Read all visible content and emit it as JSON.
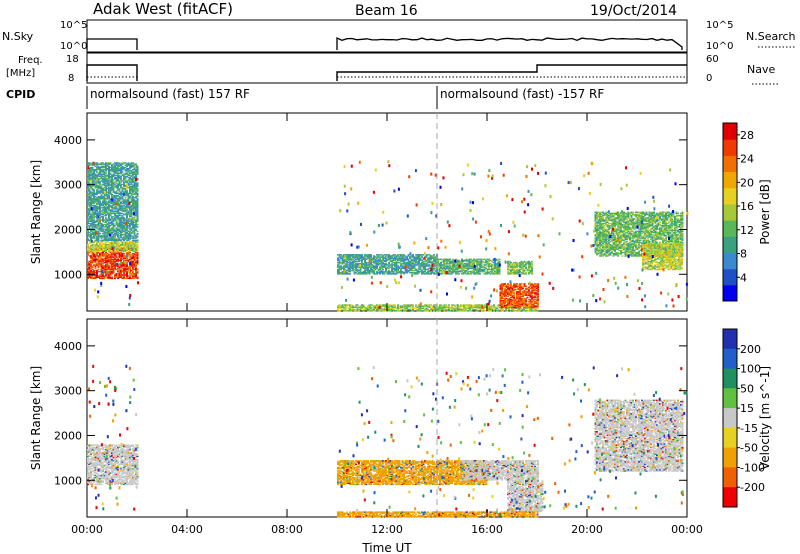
{
  "header": {
    "station": "Adak West (fitACF)",
    "beam": "Beam 16",
    "date": "19/Oct/2014"
  },
  "strip_labels": {
    "nsky": "N.Sky",
    "nsearch": "N.Search",
    "freq_line1": "Freq.",
    "freq_line2": "[MHz]",
    "nave": "Nave",
    "cpid": "CPID",
    "nsky_top": "10^5",
    "nsky_bottom": "10^0",
    "nsearch_top": "10^5",
    "nsearch_bottom": "10^0",
    "freq_top": "18",
    "freq_bottom": "8",
    "nave_top": "60",
    "nave_bottom": "0"
  },
  "cpid_segments": [
    {
      "start_h": 0,
      "end_h": 14,
      "label": "normalsound (fast) 157 RF"
    },
    {
      "start_h": 14,
      "end_h": 24,
      "label": "normalsound (fast) -157 RF"
    }
  ],
  "chart_data": [
    {
      "type": "heatmap",
      "name": "power",
      "xlabel": "Time UT",
      "ylabel": "Slant Range [km]",
      "xlim": [
        0,
        24
      ],
      "ylim": [
        180,
        4600
      ],
      "x_ticks": [
        "00:00",
        "04:00",
        "08:00",
        "12:00",
        "16:00",
        "20:00",
        "00:00"
      ],
      "y_ticks": [
        1000,
        2000,
        3000,
        4000
      ],
      "colorbar": {
        "label": "Power [dB]",
        "ticks": [
          4,
          8,
          12,
          16,
          20,
          24,
          28
        ],
        "range": [
          0,
          30
        ],
        "colors": [
          "#0000f0",
          "#1e4fc8",
          "#3a8ad0",
          "#3aa080",
          "#58b858",
          "#a8c838",
          "#e8d020",
          "#f0a800",
          "#f07000",
          "#f03a00",
          "#e00000"
        ]
      },
      "regions": [
        {
          "t": [
            0.0,
            2.0
          ],
          "r": [
            900,
            1600
          ],
          "level": 27
        },
        {
          "t": [
            0.0,
            2.0
          ],
          "r": [
            1500,
            1750
          ],
          "level": 16
        },
        {
          "t": [
            0.0,
            2.0
          ],
          "r": [
            1750,
            3500
          ],
          "level": 9
        },
        {
          "t": [
            10.0,
            18.0
          ],
          "r": [
            180,
            320
          ],
          "level": 14
        },
        {
          "t": [
            10.0,
            14.0
          ],
          "r": [
            1000,
            1450
          ],
          "level": 9
        },
        {
          "t": [
            14.0,
            16.5
          ],
          "r": [
            1000,
            1350
          ],
          "level": 11
        },
        {
          "t": [
            16.5,
            18.0
          ],
          "r": [
            250,
            800
          ],
          "level": 26
        },
        {
          "t": [
            16.8,
            17.8
          ],
          "r": [
            1000,
            1300
          ],
          "level": 13
        },
        {
          "t": [
            20.3,
            23.8
          ],
          "r": [
            1400,
            2400
          ],
          "level": 12
        },
        {
          "t": [
            22.2,
            23.8
          ],
          "r": [
            1100,
            1700
          ],
          "level": 16
        }
      ],
      "scatter_density": {
        "t": [
          10.0,
          24.0
        ],
        "r": [
          200,
          3600
        ]
      }
    },
    {
      "type": "heatmap",
      "name": "velocity",
      "xlabel": "Time UT",
      "ylabel": "Slant Range [km]",
      "xlim": [
        0,
        24
      ],
      "ylim": [
        180,
        4600
      ],
      "x_ticks": [
        "00:00",
        "04:00",
        "08:00",
        "12:00",
        "16:00",
        "20:00",
        "00:00"
      ],
      "y_ticks": [
        1000,
        2000,
        3000,
        4000
      ],
      "colorbar": {
        "label": "Velocity [m s^-1]",
        "ticks": [
          200,
          100,
          50,
          15,
          -15,
          -50,
          -100,
          -200
        ],
        "colors": [
          "#2030b0",
          "#2060c8",
          "#209060",
          "#60c040",
          "#c8c8c8",
          "#e8d020",
          "#f0a000",
          "#f06000",
          "#f00000"
        ]
      },
      "regions": [
        {
          "t": [
            0.0,
            2.0
          ],
          "r": [
            900,
            1800
          ],
          "band": 4
        },
        {
          "t": [
            10.0,
            16.0
          ],
          "r": [
            900,
            1450
          ],
          "band": 6
        },
        {
          "t": [
            15.0,
            18.0
          ],
          "r": [
            1000,
            1450
          ],
          "band": 4
        },
        {
          "t": [
            16.8,
            18.2
          ],
          "r": [
            300,
            1000
          ],
          "band": 4
        },
        {
          "t": [
            20.3,
            23.8
          ],
          "r": [
            1200,
            2800
          ],
          "band": 4
        },
        {
          "t": [
            10.0,
            18.0
          ],
          "r": [
            180,
            300
          ],
          "band": 6
        }
      ]
    }
  ]
}
